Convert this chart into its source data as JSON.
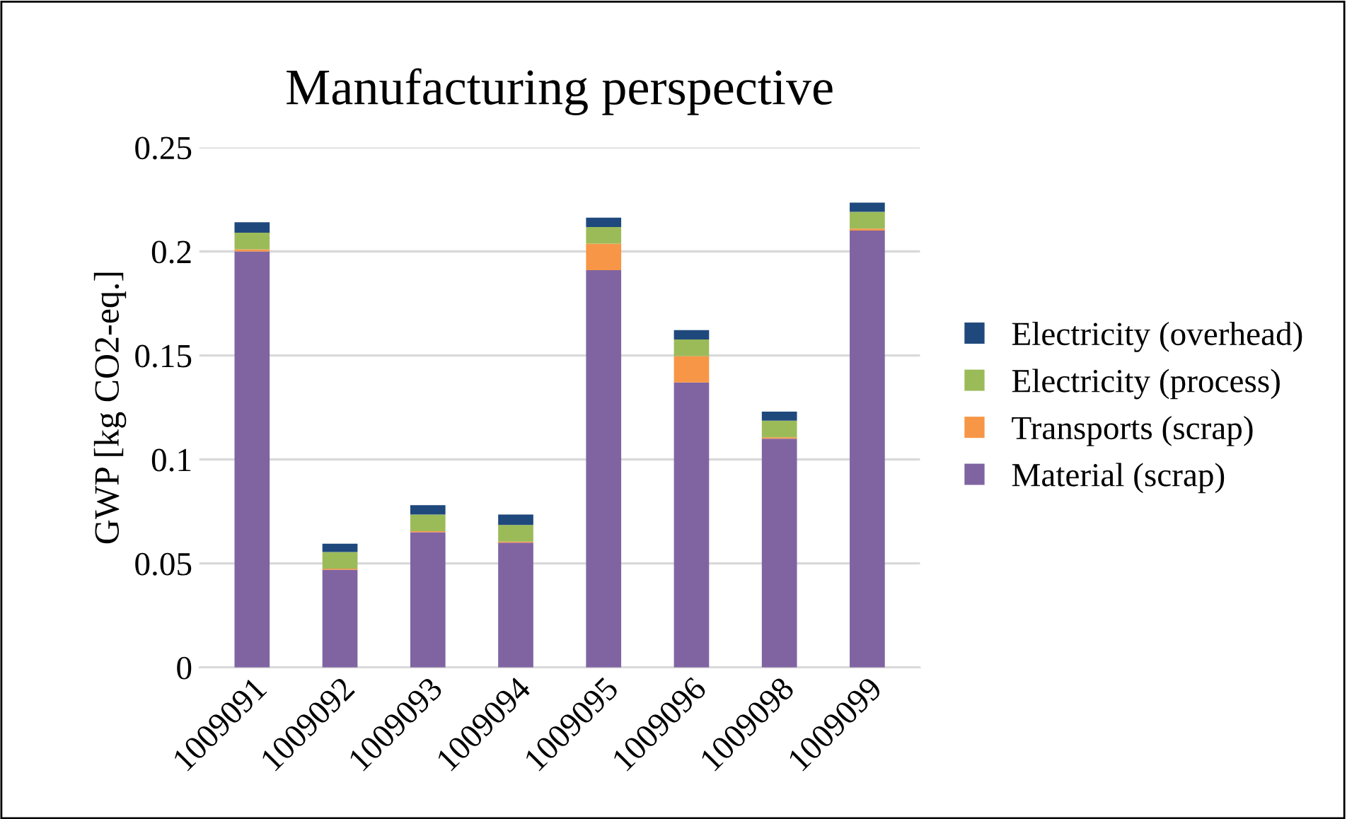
{
  "chart_data": {
    "type": "bar",
    "title": "Manufacturing perspective",
    "ylabel": "GWP [kg CO2-eq.]",
    "categories": [
      "1009091",
      "1009092",
      "1009093",
      "1009094",
      "1009095",
      "1009096",
      "1009098",
      "1009099"
    ],
    "stacked": true,
    "series": [
      {
        "name": "Material (scrap)",
        "color": "#8064a2",
        "values": [
          0.2,
          0.047,
          0.065,
          0.06,
          0.191,
          0.137,
          0.11,
          0.21
        ]
      },
      {
        "name": "Transports (scrap)",
        "color": "#f79646",
        "values": [
          0.001,
          0.0005,
          0.0005,
          0.0005,
          0.0127,
          0.0127,
          0.0007,
          0.001
        ]
      },
      {
        "name": "Electricity (process)",
        "color": "#9bbb59",
        "values": [
          0.008,
          0.008,
          0.008,
          0.008,
          0.008,
          0.008,
          0.008,
          0.008
        ]
      },
      {
        "name": "Electricity (overhead)",
        "color": "#1f497d",
        "values": [
          0.005,
          0.004,
          0.0045,
          0.005,
          0.0045,
          0.0045,
          0.0043,
          0.0045
        ]
      }
    ],
    "ylim": [
      0,
      0.25
    ],
    "yticks": [
      0,
      0.05,
      0.1,
      0.15,
      0.2,
      0.25
    ],
    "grid": "y",
    "legend": "right"
  }
}
